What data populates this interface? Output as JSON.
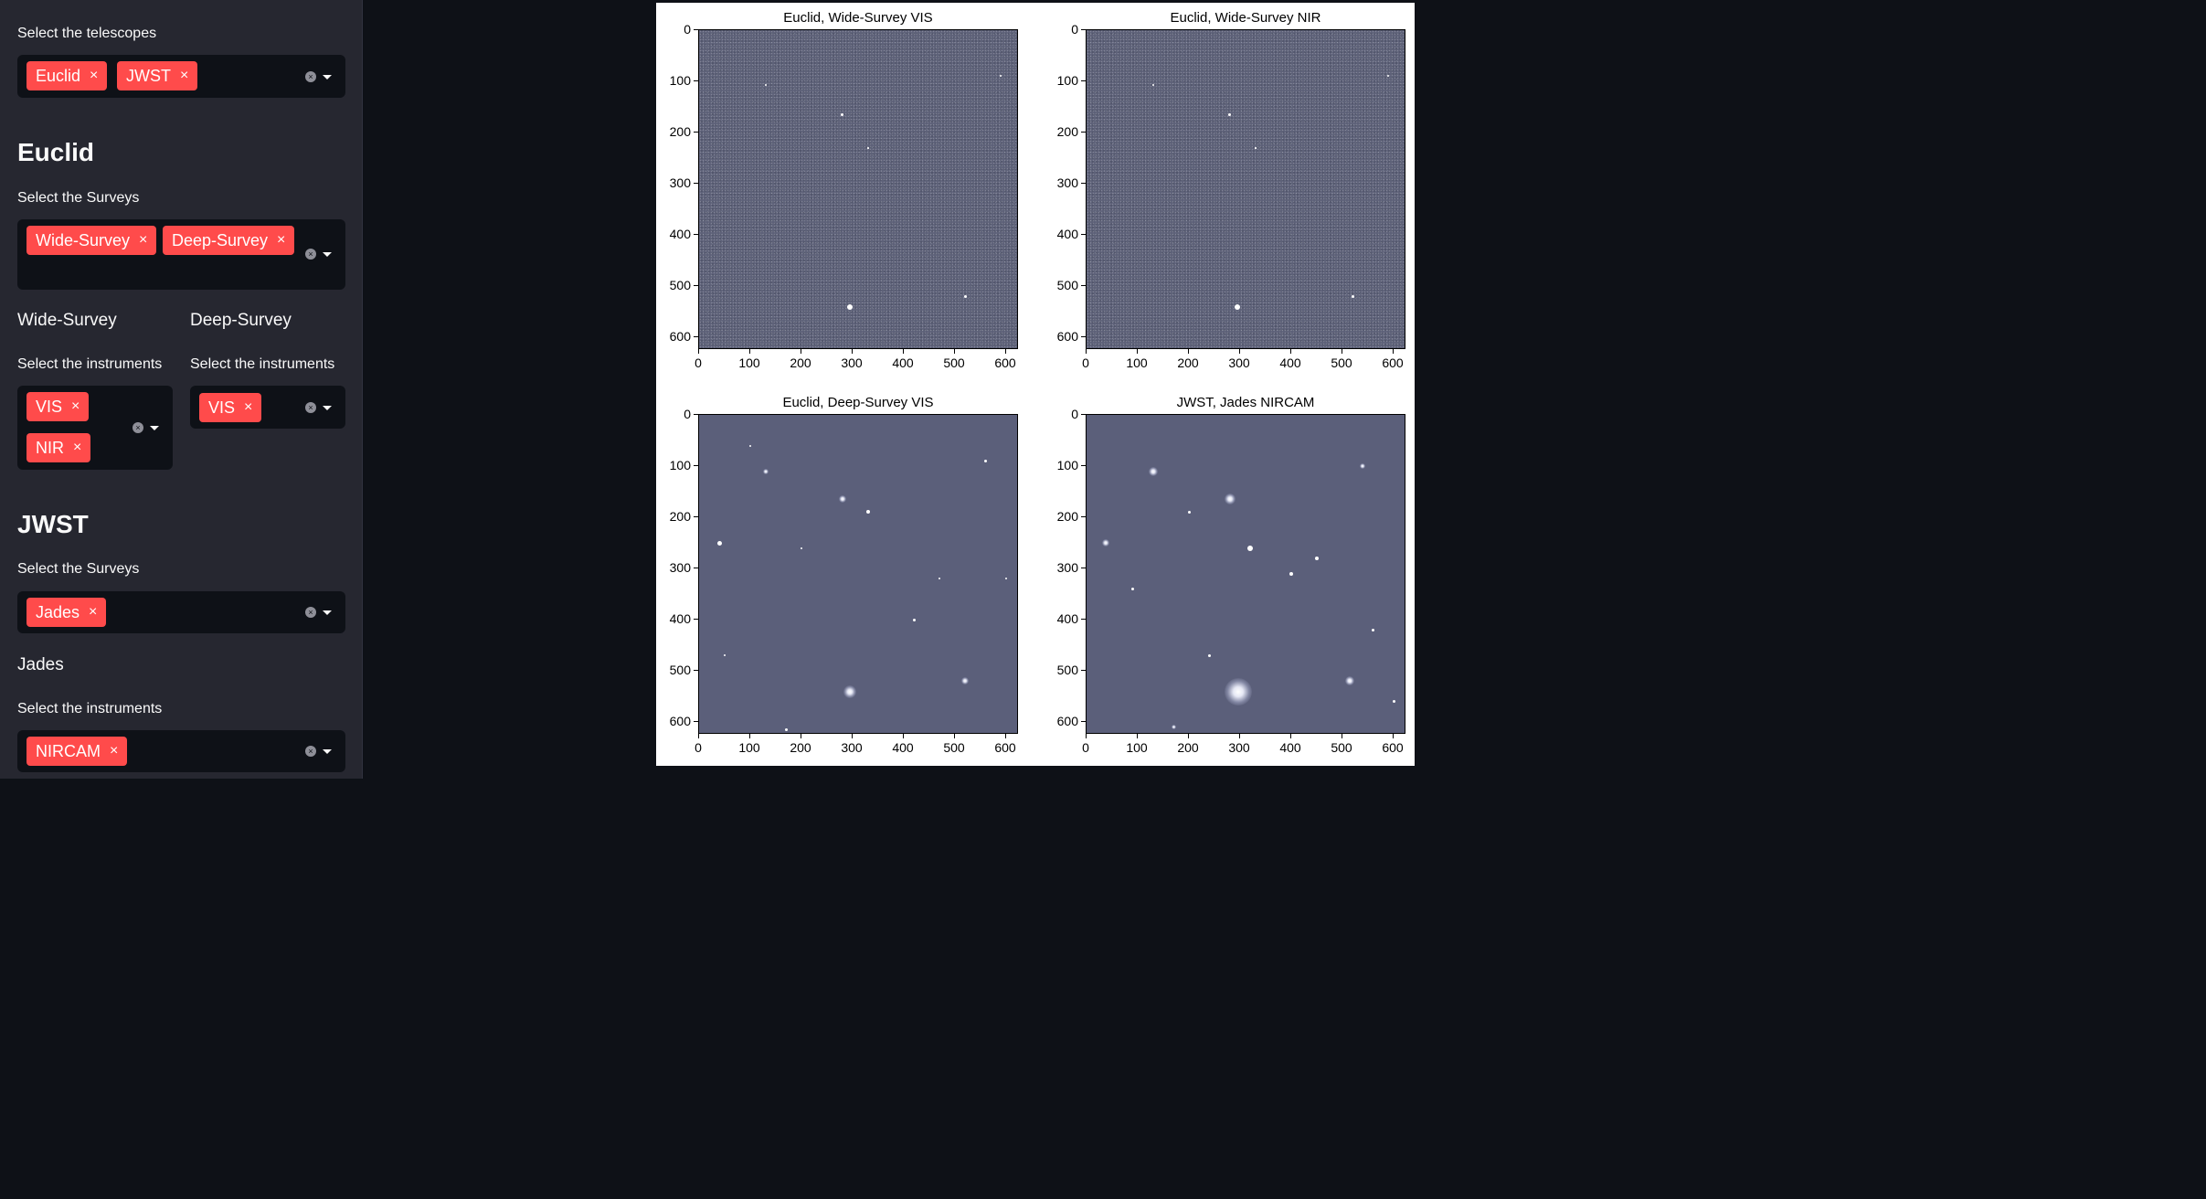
{
  "sidebar": {
    "telescopes_label": "Select the telescopes",
    "telescopes": [
      "Euclid",
      "JWST"
    ],
    "euclid": {
      "header": "Euclid",
      "surveys_label": "Select the Surveys",
      "surveys": [
        "Wide-Survey",
        "Deep-Survey"
      ],
      "wide": {
        "header": "Wide-Survey",
        "instruments_label": "Select the instruments",
        "instruments": [
          "VIS",
          "NIR"
        ]
      },
      "deep": {
        "header": "Deep-Survey",
        "instruments_label": "Select the instruments",
        "instruments": [
          "VIS"
        ]
      }
    },
    "jwst": {
      "header": "JWST",
      "surveys_label": "Select the Surveys",
      "surveys": [
        "Jades"
      ],
      "jades": {
        "header": "Jades",
        "instruments_label": "Select the instruments",
        "instruments": [
          "NIRCAM"
        ]
      }
    },
    "remove_glyph": "×",
    "clear_glyph": "×",
    "icons": {
      "remove": "x-icon",
      "clear": "clear-circle-icon",
      "dropdown": "chevron-down-icon"
    },
    "colors": {
      "tag": "#ff4b4b",
      "sidebar_bg": "#262730",
      "input_bg": "#0e1117"
    }
  },
  "figure": {
    "panels": [
      {
        "title": "Euclid, Wide-Survey VIS"
      },
      {
        "title": "Euclid, Wide-Survey NIR"
      },
      {
        "title": "Euclid, Deep-Survey VIS"
      },
      {
        "title": "JWST, Jades NIRCAM"
      }
    ],
    "x_ticks": [
      "0",
      "100",
      "200",
      "300",
      "400",
      "500",
      "600"
    ],
    "y_ticks": [
      "0",
      "100",
      "200",
      "300",
      "400",
      "500",
      "600"
    ]
  }
}
